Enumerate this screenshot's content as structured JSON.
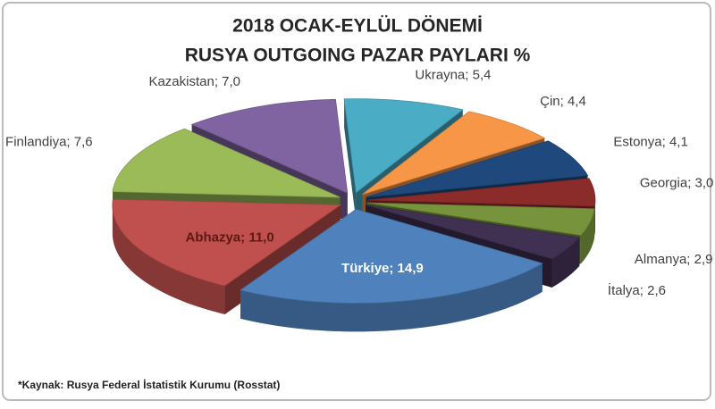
{
  "chart_data": {
    "type": "pie3d",
    "title": "2018 OCAK-EYLÜL DÖNEMİ",
    "subtitle": "RUSYA OUTGOING PAZAR PAYLARI %",
    "labels": [
      "Ukrayna; 5,4",
      "Çin; 4,4",
      "Estonya; 4,1",
      "Georgia; 3,0",
      "Almanya; 2,9",
      "İtalya; 2,6",
      "Türkiye; 14,9",
      "Abhazya; 11,0",
      "Finlandiya; 7,6",
      "Kazakistan; 7,0"
    ],
    "values": [
      5.4,
      4.4,
      4.1,
      3.0,
      2.9,
      2.6,
      14.9,
      11.0,
      7.6,
      7.0
    ],
    "colors": [
      "#4bacc6",
      "#f79646",
      "#1f497d",
      "#8b2c2a",
      "#77933c",
      "#403152",
      "#4f81bd",
      "#c0504d",
      "#9bbb59",
      "#8064a2"
    ],
    "footnote": "*Kaynak: Rusya Federal İstatistik Kurumu (Rosstat)"
  }
}
